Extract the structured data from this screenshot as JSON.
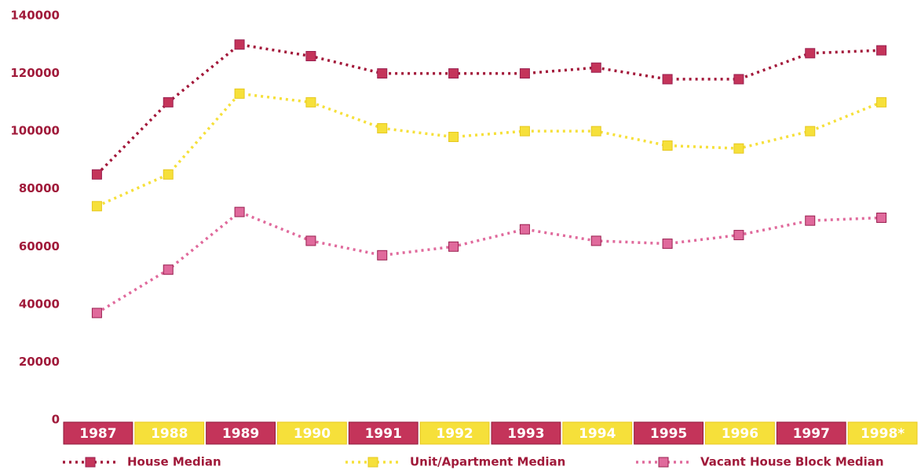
{
  "chart_data": {
    "type": "line",
    "categories": [
      "1987",
      "1988",
      "1989",
      "1990",
      "1991",
      "1992",
      "1993",
      "1994",
      "1995",
      "1996",
      "1997",
      "1998*"
    ],
    "series": [
      {
        "name": "House Median",
        "color": "#c4345a",
        "values": [
          85000,
          110000,
          130000,
          126000,
          120000,
          120000,
          120000,
          122000,
          118000,
          118000,
          127000,
          128000
        ]
      },
      {
        "name": "Unit/Apartment Median",
        "color": "#f6e03a",
        "values": [
          74000,
          85000,
          113000,
          110000,
          101000,
          98000,
          100000,
          100000,
          95000,
          94000,
          100000,
          110000
        ]
      },
      {
        "name": "Vacant House Block Median",
        "color": "#e06a9c",
        "values": [
          37000,
          52000,
          72000,
          62000,
          57000,
          60000,
          66000,
          62000,
          61000,
          64000,
          69000,
          70000
        ]
      }
    ],
    "ylim": [
      0,
      140000
    ],
    "yticks": [
      0,
      20000,
      40000,
      60000,
      80000,
      100000,
      120000,
      140000
    ],
    "grid": false
  }
}
